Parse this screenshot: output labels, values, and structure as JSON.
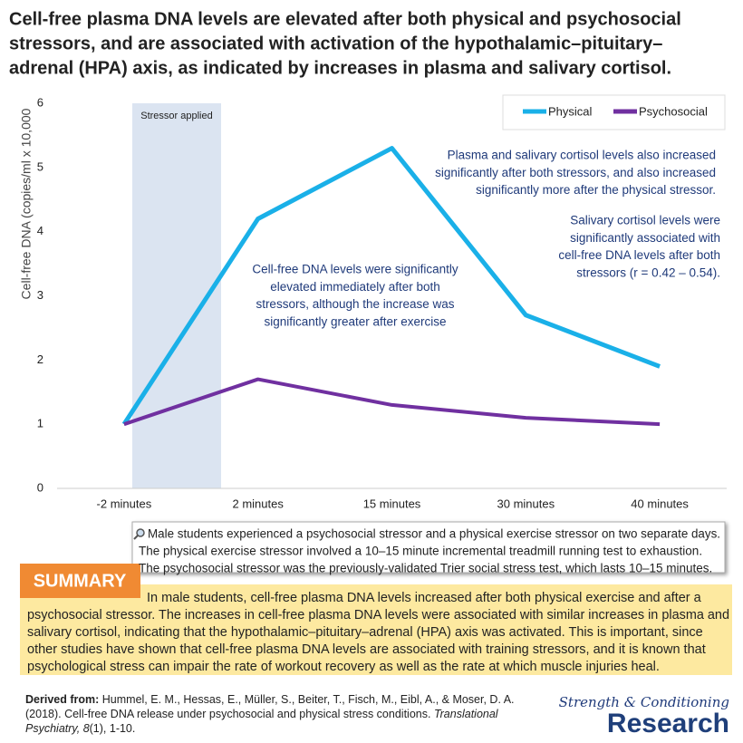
{
  "chart_data": {
    "type": "line",
    "title_lines": [
      "Cell-free plasma DNA levels are elevated after both physical and psychosocial",
      "stressors, and are associated with activation of the hypothalamic–pituitary–",
      "adrenal (HPA) axis, as indicated by increases in plasma and salivary cortisol."
    ],
    "y_label": "Cell-free DNA (copies/ml x 10,000",
    "categories": [
      "-2 minutes",
      "2 minutes",
      "15 minutes",
      "30 minutes",
      "40 minutes"
    ],
    "series": [
      {
        "name": "Physical",
        "color": "#1ab0e8",
        "values": [
          1,
          4.2,
          5.3,
          2.7,
          1.9
        ]
      },
      {
        "name": "Psychosocial",
        "color": "#7030a0",
        "values": [
          1,
          1.7,
          1.3,
          1.1,
          1.0
        ]
      }
    ],
    "ylim": [
      0,
      6
    ],
    "yticks": [
      0,
      1,
      2,
      3,
      4,
      5,
      6
    ],
    "grid": false,
    "legend": "top-right",
    "shaded_label": "Stressor applied",
    "annotations": [
      {
        "align": "right",
        "lines": [
          "Plasma and salivary cortisol levels also increased",
          "significantly after both stressors, and also increased",
          "significantly more after the physical stressor."
        ]
      },
      {
        "align": "right",
        "lines": [
          "Salivary cortisol levels were",
          "significantly associated with",
          "cell-free DNA levels after both",
          "stressors (r = 0.42 – 0.54)."
        ]
      },
      {
        "align": "center",
        "lines": [
          "Cell-free DNA levels were significantly",
          "elevated immediately after both",
          "stressors, although the increase was",
          "significantly greater after exercise"
        ]
      }
    ]
  },
  "note": {
    "lines": [
      "Male students experienced a psychosocial stressor and a physical exercise stressor on two separate days.",
      "The physical exercise stressor involved a 10–15 minute incremental treadmill running test to exhaustion.",
      "The psychosocial stressor was  the previously-validated Trier social stress test, which lasts 10–15 minutes."
    ]
  },
  "summary": {
    "label": "SUMMARY",
    "lines": [
      "In male students, cell-free plasma DNA levels increased after both physical exercise and after a",
      "psychosocial stressor. The increases in cell-free plasma DNA levels were associated with similar increases in plasma and",
      "salivary cortisol, indicating that the hypothalamic–pituitary–adrenal (HPA) axis was activated. This is important, since",
      "other studies have shown that cell-free plasma DNA levels are associated with training stressors, and it is known that",
      "psychological stress can impair the rate of workout recovery as well as the rate at which muscle injuries heal."
    ]
  },
  "citation": {
    "label": "Derived from:",
    "line1": "Hummel, E. M., Hessas, E., Müller, S., Beiter, T., Fisch, M., Eibl, A., & Moser, D. A.",
    "line2": "(2018). Cell-free DNA release under psychosocial and physical stress conditions.",
    "journal_1": "Translational",
    "journal_2": "Psychiatry,",
    "volume": "8",
    "pages": "(1), 1-10."
  },
  "logo": {
    "line1": "Strength & Conditioning",
    "line2": "Research"
  }
}
